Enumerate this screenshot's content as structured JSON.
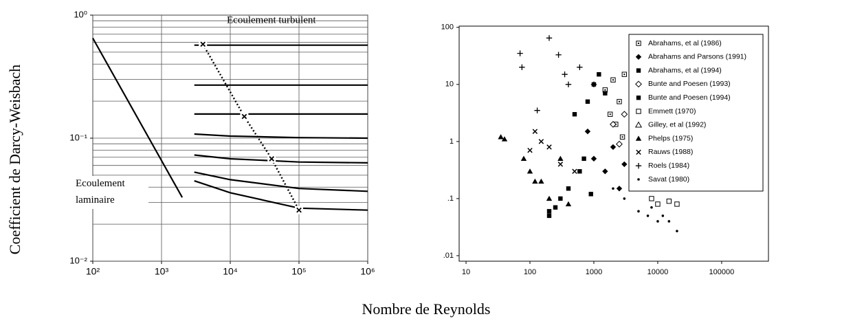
{
  "xlabel": "Nombre de Reynolds",
  "ylabel": "Coefficient de Darcy-Weisbach",
  "chart_data": [
    {
      "type": "line",
      "xscale": "log",
      "yscale": "log",
      "grid": true,
      "xlim": [
        100,
        1000000
      ],
      "ylim": [
        0.01,
        1
      ],
      "xticks": [
        {
          "value": 100,
          "label": "10²"
        },
        {
          "value": 1000,
          "label": "10³"
        },
        {
          "value": 10000,
          "label": "10⁴"
        },
        {
          "value": 100000,
          "label": "10⁵"
        },
        {
          "value": 1000000,
          "label": "10⁶"
        }
      ],
      "yticks": [
        {
          "value": 0.01,
          "label": "10⁻²"
        },
        {
          "value": 0.1,
          "label": "10⁻¹"
        },
        {
          "value": 1,
          "label": "10⁰"
        }
      ],
      "yminorticks": [
        0.02,
        0.03,
        0.04,
        0.05,
        0.06,
        0.07,
        0.08,
        0.09,
        0.2,
        0.3,
        0.4,
        0.5,
        0.6,
        0.7,
        0.8,
        0.9
      ],
      "annotations": [
        "Ecoulement turbulent",
        "Ecoulement laminaire"
      ],
      "series": [
        {
          "color": "#000000",
          "x": [
            100,
            2000
          ],
          "values": [
            0.65,
            0.033
          ]
        },
        {
          "color": "#000000",
          "x": [
            3000,
            10000,
            100000,
            1000000
          ],
          "values": [
            0.57,
            0.57,
            0.57,
            0.57
          ]
        },
        {
          "color": "#000000",
          "x": [
            3000,
            10000,
            100000,
            1000000
          ],
          "values": [
            0.27,
            0.27,
            0.27,
            0.27
          ]
        },
        {
          "color": "#000000",
          "x": [
            3000,
            10000,
            100000,
            1000000
          ],
          "values": [
            0.157,
            0.157,
            0.157,
            0.157
          ]
        },
        {
          "color": "#000000",
          "x": [
            3000,
            10000,
            100000,
            1000000
          ],
          "values": [
            0.108,
            0.104,
            0.101,
            0.1
          ]
        },
        {
          "color": "#000000",
          "x": [
            3000,
            10000,
            100000,
            1000000
          ],
          "values": [
            0.073,
            0.068,
            0.064,
            0.063
          ]
        },
        {
          "color": "#000000",
          "x": [
            3000,
            10000,
            100000,
            1000000
          ],
          "values": [
            0.053,
            0.046,
            0.039,
            0.037
          ]
        },
        {
          "color": "#000000",
          "x": [
            3000,
            10000,
            100000,
            1000000
          ],
          "values": [
            0.045,
            0.036,
            0.027,
            0.026
          ]
        },
        {
          "color": "#000000",
          "dashed": true,
          "marker": "x",
          "x": [
            4000,
            16000,
            40000,
            100000
          ],
          "values": [
            0.58,
            0.15,
            0.068,
            0.026
          ]
        }
      ]
    },
    {
      "type": "scatter",
      "xscale": "log",
      "yscale": "log",
      "grid": false,
      "xlim": [
        7.8,
        540000
      ],
      "ylim": [
        0.008,
        105
      ],
      "xticks": [
        10,
        100,
        1000,
        10000,
        100000
      ],
      "yticks": [
        {
          "value": 100,
          "label": "100"
        },
        {
          "value": 10,
          "label": "10"
        },
        {
          "value": 1,
          "label": "1"
        },
        {
          "value": 0.1,
          "label": ".1"
        },
        {
          "value": 0.01,
          "label": ".01"
        }
      ],
      "legend": "upper right",
      "series": [
        {
          "name": "Abrahams, et al (1986)",
          "color": "#000000",
          "marker": "square-dot",
          "x": [
            1500,
            2000,
            2500,
            3000,
            1800,
            2200,
            4000,
            2800
          ],
          "values": [
            8,
            12,
            5,
            15,
            3,
            2,
            19,
            1.2
          ]
        },
        {
          "name": "Abrahams and Parsons (1991)",
          "color": "#000000",
          "marker": "diamond",
          "x": [
            1000,
            1500,
            2000,
            3000,
            5000,
            800,
            2500
          ],
          "values": [
            0.5,
            0.3,
            0.8,
            0.4,
            0.2,
            1.5,
            0.15
          ]
        },
        {
          "name": "Abrahams, et al (1994)",
          "color": "#000000",
          "marker": "square",
          "x": [
            200,
            500,
            800,
            1000,
            1200,
            300,
            700,
            1500
          ],
          "values": [
            0.06,
            3,
            5,
            10,
            15,
            0.1,
            0.5,
            7
          ]
        },
        {
          "name": "Bunte and Poesen (1993)",
          "color": "#000000",
          "marker": "diamond-open",
          "x": [
            2000,
            3000,
            4000,
            5000,
            6000,
            2500
          ],
          "values": [
            2,
            3,
            1,
            0.6,
            0.4,
            0.9
          ]
        },
        {
          "name": "Bunte and Poesen (1994)",
          "color": "#000000",
          "marker": "square",
          "x": [
            200,
            250,
            400,
            600,
            900
          ],
          "values": [
            0.05,
            0.07,
            0.15,
            0.3,
            0.12
          ]
        },
        {
          "name": "Emmett (1970)",
          "color": "#000000",
          "marker": "square-open",
          "x": [
            8000,
            10000,
            15000,
            20000,
            12000,
            6000
          ],
          "values": [
            0.1,
            0.08,
            0.09,
            0.08,
            0.2,
            0.3
          ]
        },
        {
          "name": "Gilley, et al (1992)",
          "color": "#000000",
          "marker": "triangle-open",
          "x": [
            5000,
            7000,
            10000,
            13000,
            8000,
            11000,
            4000
          ],
          "values": [
            3,
            2,
            1.5,
            0.5,
            0.8,
            0.3,
            1.1
          ]
        },
        {
          "name": "Phelps (1975)",
          "color": "#000000",
          "marker": "triangle",
          "x": [
            35,
            40,
            80,
            100,
            150,
            200,
            400,
            300,
            120
          ],
          "values": [
            1.2,
            1.1,
            0.5,
            0.3,
            0.2,
            0.1,
            0.08,
            0.5,
            0.2
          ]
        },
        {
          "name": "Rauws (1988)",
          "color": "#000000",
          "marker": "x",
          "x": [
            120,
            150,
            200,
            100,
            300,
            500,
            10000
          ],
          "values": [
            1.5,
            1,
            0.8,
            0.7,
            0.4,
            0.3,
            0.35
          ]
        },
        {
          "name": "Roels (1984)",
          "color": "#000000",
          "marker": "plus",
          "x": [
            70,
            75,
            200,
            280,
            350,
            400,
            130,
            600,
            1000
          ],
          "values": [
            35,
            20,
            65,
            33,
            15,
            10,
            3.5,
            20,
            10
          ]
        },
        {
          "name": "Savat (1980)",
          "color": "#000000",
          "marker": "dot",
          "x": [
            3000,
            5000,
            7000,
            10000,
            12000,
            15000,
            20000,
            8000,
            2000
          ],
          "values": [
            0.1,
            0.06,
            0.05,
            0.04,
            0.05,
            0.04,
            0.027,
            0.07,
            0.15
          ]
        }
      ]
    }
  ]
}
